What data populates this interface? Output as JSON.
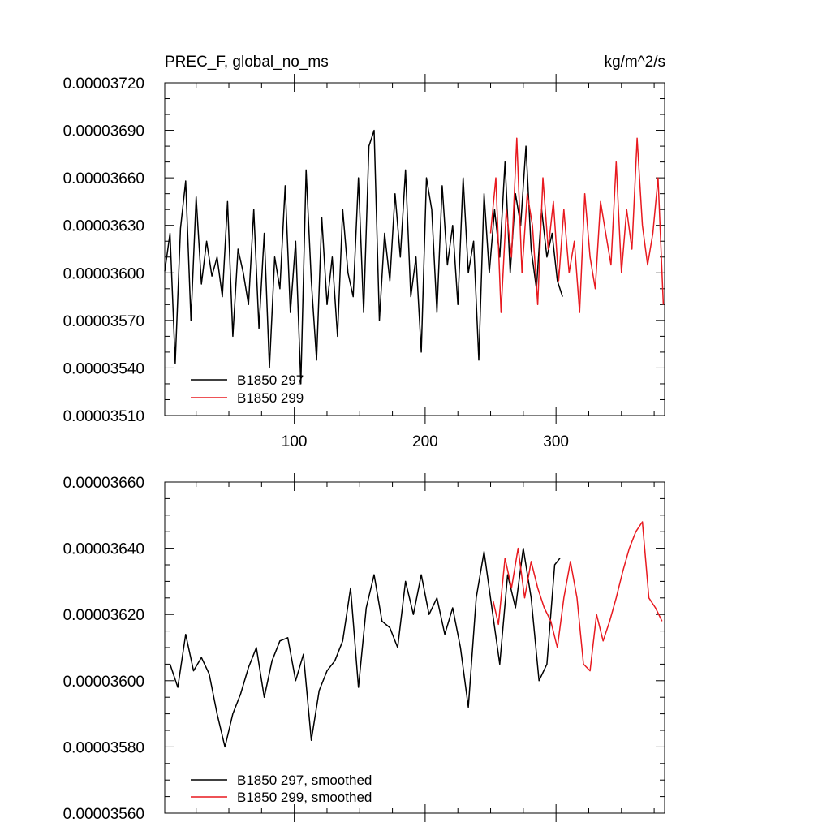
{
  "chart_data": [
    {
      "type": "line",
      "title": "PREC_F, global_no_ms",
      "units": "kg/m^2/s",
      "xlim": [
        1,
        383
      ],
      "ylim": [
        3.51e-05,
        3.72e-05
      ],
      "x_tick_labels": [
        "100",
        "200",
        "300"
      ],
      "y_tick_labels": [
        "0.00003510",
        "0.00003540",
        "0.00003570",
        "0.00003600",
        "0.00003630",
        "0.00003660",
        "0.00003690",
        "0.00003720"
      ],
      "legend_position": "bottom-left",
      "series": [
        {
          "name": "B1850 297",
          "color": "#000000",
          "x": [
            1,
            5,
            9,
            13,
            17,
            21,
            25,
            29,
            33,
            37,
            41,
            45,
            49,
            53,
            57,
            61,
            65,
            69,
            73,
            77,
            81,
            85,
            89,
            93,
            97,
            101,
            105,
            109,
            113,
            117,
            121,
            125,
            129,
            133,
            137,
            141,
            145,
            149,
            153,
            157,
            161,
            165,
            169,
            173,
            177,
            181,
            185,
            189,
            193,
            197,
            201,
            205,
            209,
            213,
            217,
            221,
            225,
            229,
            233,
            237,
            241,
            245,
            249,
            253,
            257,
            261,
            265,
            269,
            273,
            277,
            281,
            285,
            289,
            293,
            297,
            301,
            305
          ],
          "y": [
            3.601e-05,
            3.625e-05,
            3.543e-05,
            3.628e-05,
            3.658e-05,
            3.57e-05,
            3.648e-05,
            3.593e-05,
            3.62e-05,
            3.598e-05,
            3.61e-05,
            3.585e-05,
            3.645e-05,
            3.56e-05,
            3.615e-05,
            3.6e-05,
            3.58e-05,
            3.64e-05,
            3.565e-05,
            3.625e-05,
            3.54e-05,
            3.61e-05,
            3.59e-05,
            3.655e-05,
            3.575e-05,
            3.62e-05,
            3.53e-05,
            3.665e-05,
            3.595e-05,
            3.545e-05,
            3.635e-05,
            3.58e-05,
            3.61e-05,
            3.56e-05,
            3.64e-05,
            3.6e-05,
            3.585e-05,
            3.66e-05,
            3.575e-05,
            3.68e-05,
            3.69e-05,
            3.57e-05,
            3.625e-05,
            3.595e-05,
            3.65e-05,
            3.61e-05,
            3.665e-05,
            3.585e-05,
            3.61e-05,
            3.55e-05,
            3.66e-05,
            3.64e-05,
            3.575e-05,
            3.655e-05,
            3.605e-05,
            3.63e-05,
            3.58e-05,
            3.66e-05,
            3.6e-05,
            3.62e-05,
            3.545e-05,
            3.65e-05,
            3.6e-05,
            3.64e-05,
            3.61e-05,
            3.67e-05,
            3.6e-05,
            3.65e-05,
            3.63e-05,
            3.68e-05,
            3.615e-05,
            3.59e-05,
            3.64e-05,
            3.61e-05,
            3.625e-05,
            3.595e-05,
            3.585e-05
          ]
        },
        {
          "name": "B1850 299",
          "color": "#e8191f",
          "x": [
            250,
            254,
            258,
            262,
            266,
            270,
            274,
            278,
            282,
            286,
            290,
            294,
            298,
            302,
            306,
            310,
            314,
            318,
            322,
            326,
            330,
            334,
            338,
            342,
            346,
            350,
            354,
            358,
            362,
            366,
            370,
            374,
            378,
            382
          ],
          "y": [
            3.625e-05,
            3.66e-05,
            3.575e-05,
            3.64e-05,
            3.61e-05,
            3.685e-05,
            3.6e-05,
            3.65e-05,
            3.63e-05,
            3.58e-05,
            3.66e-05,
            3.615e-05,
            3.645e-05,
            3.595e-05,
            3.64e-05,
            3.6e-05,
            3.62e-05,
            3.575e-05,
            3.65e-05,
            3.61e-05,
            3.59e-05,
            3.645e-05,
            3.625e-05,
            3.605e-05,
            3.67e-05,
            3.6e-05,
            3.64e-05,
            3.615e-05,
            3.685e-05,
            3.63e-05,
            3.605e-05,
            3.625e-05,
            3.66e-05,
            3.58e-05
          ]
        }
      ]
    },
    {
      "type": "line",
      "xlim": [
        1,
        383
      ],
      "ylim": [
        3.56e-05,
        3.66e-05
      ],
      "y_tick_labels": [
        "0.00003560",
        "0.00003580",
        "0.00003600",
        "0.00003620",
        "0.00003640",
        "0.00003660"
      ],
      "legend_position": "bottom-left",
      "series": [
        {
          "name": "B1850 297, smoothed",
          "color": "#000000",
          "x": [
            5,
            11,
            17,
            23,
            29,
            35,
            41,
            47,
            53,
            59,
            65,
            71,
            77,
            83,
            89,
            95,
            101,
            107,
            113,
            119,
            125,
            131,
            137,
            143,
            149,
            155,
            161,
            167,
            173,
            179,
            185,
            191,
            197,
            203,
            209,
            215,
            221,
            227,
            233,
            239,
            245,
            251,
            257,
            263,
            269,
            275,
            281,
            287,
            293,
            299,
            303
          ],
          "y": [
            3.605e-05,
            3.598e-05,
            3.614e-05,
            3.603e-05,
            3.607e-05,
            3.602e-05,
            3.59e-05,
            3.58e-05,
            3.59e-05,
            3.596e-05,
            3.604e-05,
            3.61e-05,
            3.595e-05,
            3.606e-05,
            3.612e-05,
            3.613e-05,
            3.6e-05,
            3.608e-05,
            3.582e-05,
            3.597e-05,
            3.603e-05,
            3.606e-05,
            3.612e-05,
            3.628e-05,
            3.598e-05,
            3.622e-05,
            3.632e-05,
            3.618e-05,
            3.616e-05,
            3.61e-05,
            3.63e-05,
            3.62e-05,
            3.632e-05,
            3.62e-05,
            3.625e-05,
            3.614e-05,
            3.622e-05,
            3.61e-05,
            3.592e-05,
            3.625e-05,
            3.639e-05,
            3.622e-05,
            3.605e-05,
            3.632e-05,
            3.622e-05,
            3.64e-05,
            3.625e-05,
            3.6e-05,
            3.605e-05,
            3.635e-05,
            3.637e-05
          ]
        },
        {
          "name": "B1850 299, smoothed",
          "color": "#e8191f",
          "x": [
            252,
            256,
            261,
            266,
            271,
            276,
            281,
            286,
            291,
            296,
            301,
            306,
            311,
            316,
            321,
            326,
            331,
            336,
            341,
            346,
            351,
            356,
            361,
            366,
            371,
            376,
            381
          ],
          "y": [
            3.624e-05,
            3.617e-05,
            3.637e-05,
            3.628e-05,
            3.64e-05,
            3.625e-05,
            3.636e-05,
            3.628e-05,
            3.622e-05,
            3.618e-05,
            3.61e-05,
            3.625e-05,
            3.636e-05,
            3.625e-05,
            3.605e-05,
            3.603e-05,
            3.62e-05,
            3.612e-05,
            3.618e-05,
            3.625e-05,
            3.633e-05,
            3.64e-05,
            3.645e-05,
            3.648e-05,
            3.625e-05,
            3.622e-05,
            3.618e-05
          ]
        }
      ]
    }
  ]
}
